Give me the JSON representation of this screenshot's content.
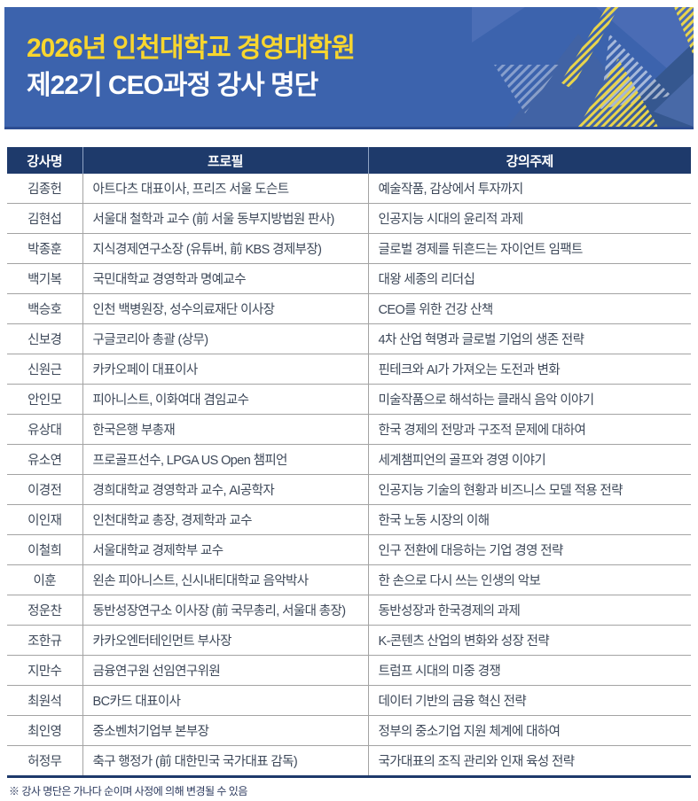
{
  "banner": {
    "title_line1": "2026년 인천대학교 경영대학원",
    "title_line2": "제22기 CEO과정 강사 명단"
  },
  "table": {
    "columns": [
      "강사명",
      "프로필",
      "강의주제"
    ],
    "rows": [
      {
        "name": "김종헌",
        "profile": "아트다츠 대표이사, 프리즈 서울 도슨트",
        "topic": "예술작품, 감상에서 투자까지"
      },
      {
        "name": "김현섭",
        "profile": "서울대 철학과 교수 (前 서울 동부지방법원 판사)",
        "topic": "인공지능 시대의 윤리적 과제"
      },
      {
        "name": "박종훈",
        "profile": "지식경제연구소장 (유튜버, 前 KBS 경제부장)",
        "topic": "글로벌 경제를 뒤흔드는 자이언트 임팩트"
      },
      {
        "name": "백기복",
        "profile": "국민대학교 경영학과 명예교수",
        "topic": "대왕 세종의 리더십"
      },
      {
        "name": "백승호",
        "profile": "인천 백병원장, 성수의료재단 이사장",
        "topic": "CEO를 위한 건강 산책"
      },
      {
        "name": "신보경",
        "profile": "구글코리아 총괄 (상무)",
        "topic": "4차 산업 혁명과 글로벌 기업의 생존 전략"
      },
      {
        "name": "신원근",
        "profile": "카카오페이 대표이사",
        "topic": "핀테크와 AI가 가져오는 도전과 변화"
      },
      {
        "name": "안인모",
        "profile": "피아니스트, 이화여대 겸임교수",
        "topic": "미술작품으로 해석하는 클래식 음악 이야기"
      },
      {
        "name": "유상대",
        "profile": "한국은행 부총재",
        "topic": "한국 경제의 전망과 구조적 문제에 대하여"
      },
      {
        "name": "유소연",
        "profile": "프로골프선수, LPGA US Open 챔피언",
        "topic": "세계챔피언의 골프와 경영 이야기"
      },
      {
        "name": "이경전",
        "profile": "경희대학교 경영학과 교수, AI공학자",
        "topic": "인공지능 기술의 현황과 비즈니스 모델 적용 전략"
      },
      {
        "name": "이인재",
        "profile": "인천대학교 총장, 경제학과 교수",
        "topic": "한국 노동 시장의 이해"
      },
      {
        "name": "이철희",
        "profile": "서울대학교 경제학부 교수",
        "topic": "인구 전환에 대응하는 기업 경영 전략"
      },
      {
        "name": "이훈",
        "profile": "왼손 피아니스트, 신시내티대학교 음악박사",
        "topic": "한 손으로 다시 쓰는 인생의 악보"
      },
      {
        "name": "정운찬",
        "profile": "동반성장연구소 이사장 (前 국무총리, 서울대 총장)",
        "topic": "동반성장과 한국경제의 과제"
      },
      {
        "name": "조한규",
        "profile": "카카오엔터테인먼트 부사장",
        "topic": "K-콘텐츠 산업의 변화와 성장 전략"
      },
      {
        "name": "지만수",
        "profile": "금융연구원 선임연구위원",
        "topic": "트럼프 시대의 미중 경쟁"
      },
      {
        "name": "최원석",
        "profile": "BC카드 대표이사",
        "topic": "데이터 기반의 금융 혁신 전략"
      },
      {
        "name": "최인영",
        "profile": "중소벤처기업부 본부장",
        "topic": "정부의 중소기업 지원 체계에 대하여"
      },
      {
        "name": "허정무",
        "profile": "축구 행정가 (前 대한민국 국가대표 감독)",
        "topic": "국가대표의 조직 관리와 인재 육성 전략"
      }
    ]
  },
  "footnote": "※ 강사 명단은 가나다 순이며 사정에 의해 변경될 수 있음",
  "colors": {
    "banner-bg": "#3c63ad",
    "banner-strip": "#2d4d92",
    "title-yellow": "#f8d62e",
    "title-white": "#ffffff",
    "header-bg": "#1e3a6b",
    "grid": "#a3a3a3",
    "body-text": "#3d4859",
    "footnote": "#2c3a5e"
  }
}
